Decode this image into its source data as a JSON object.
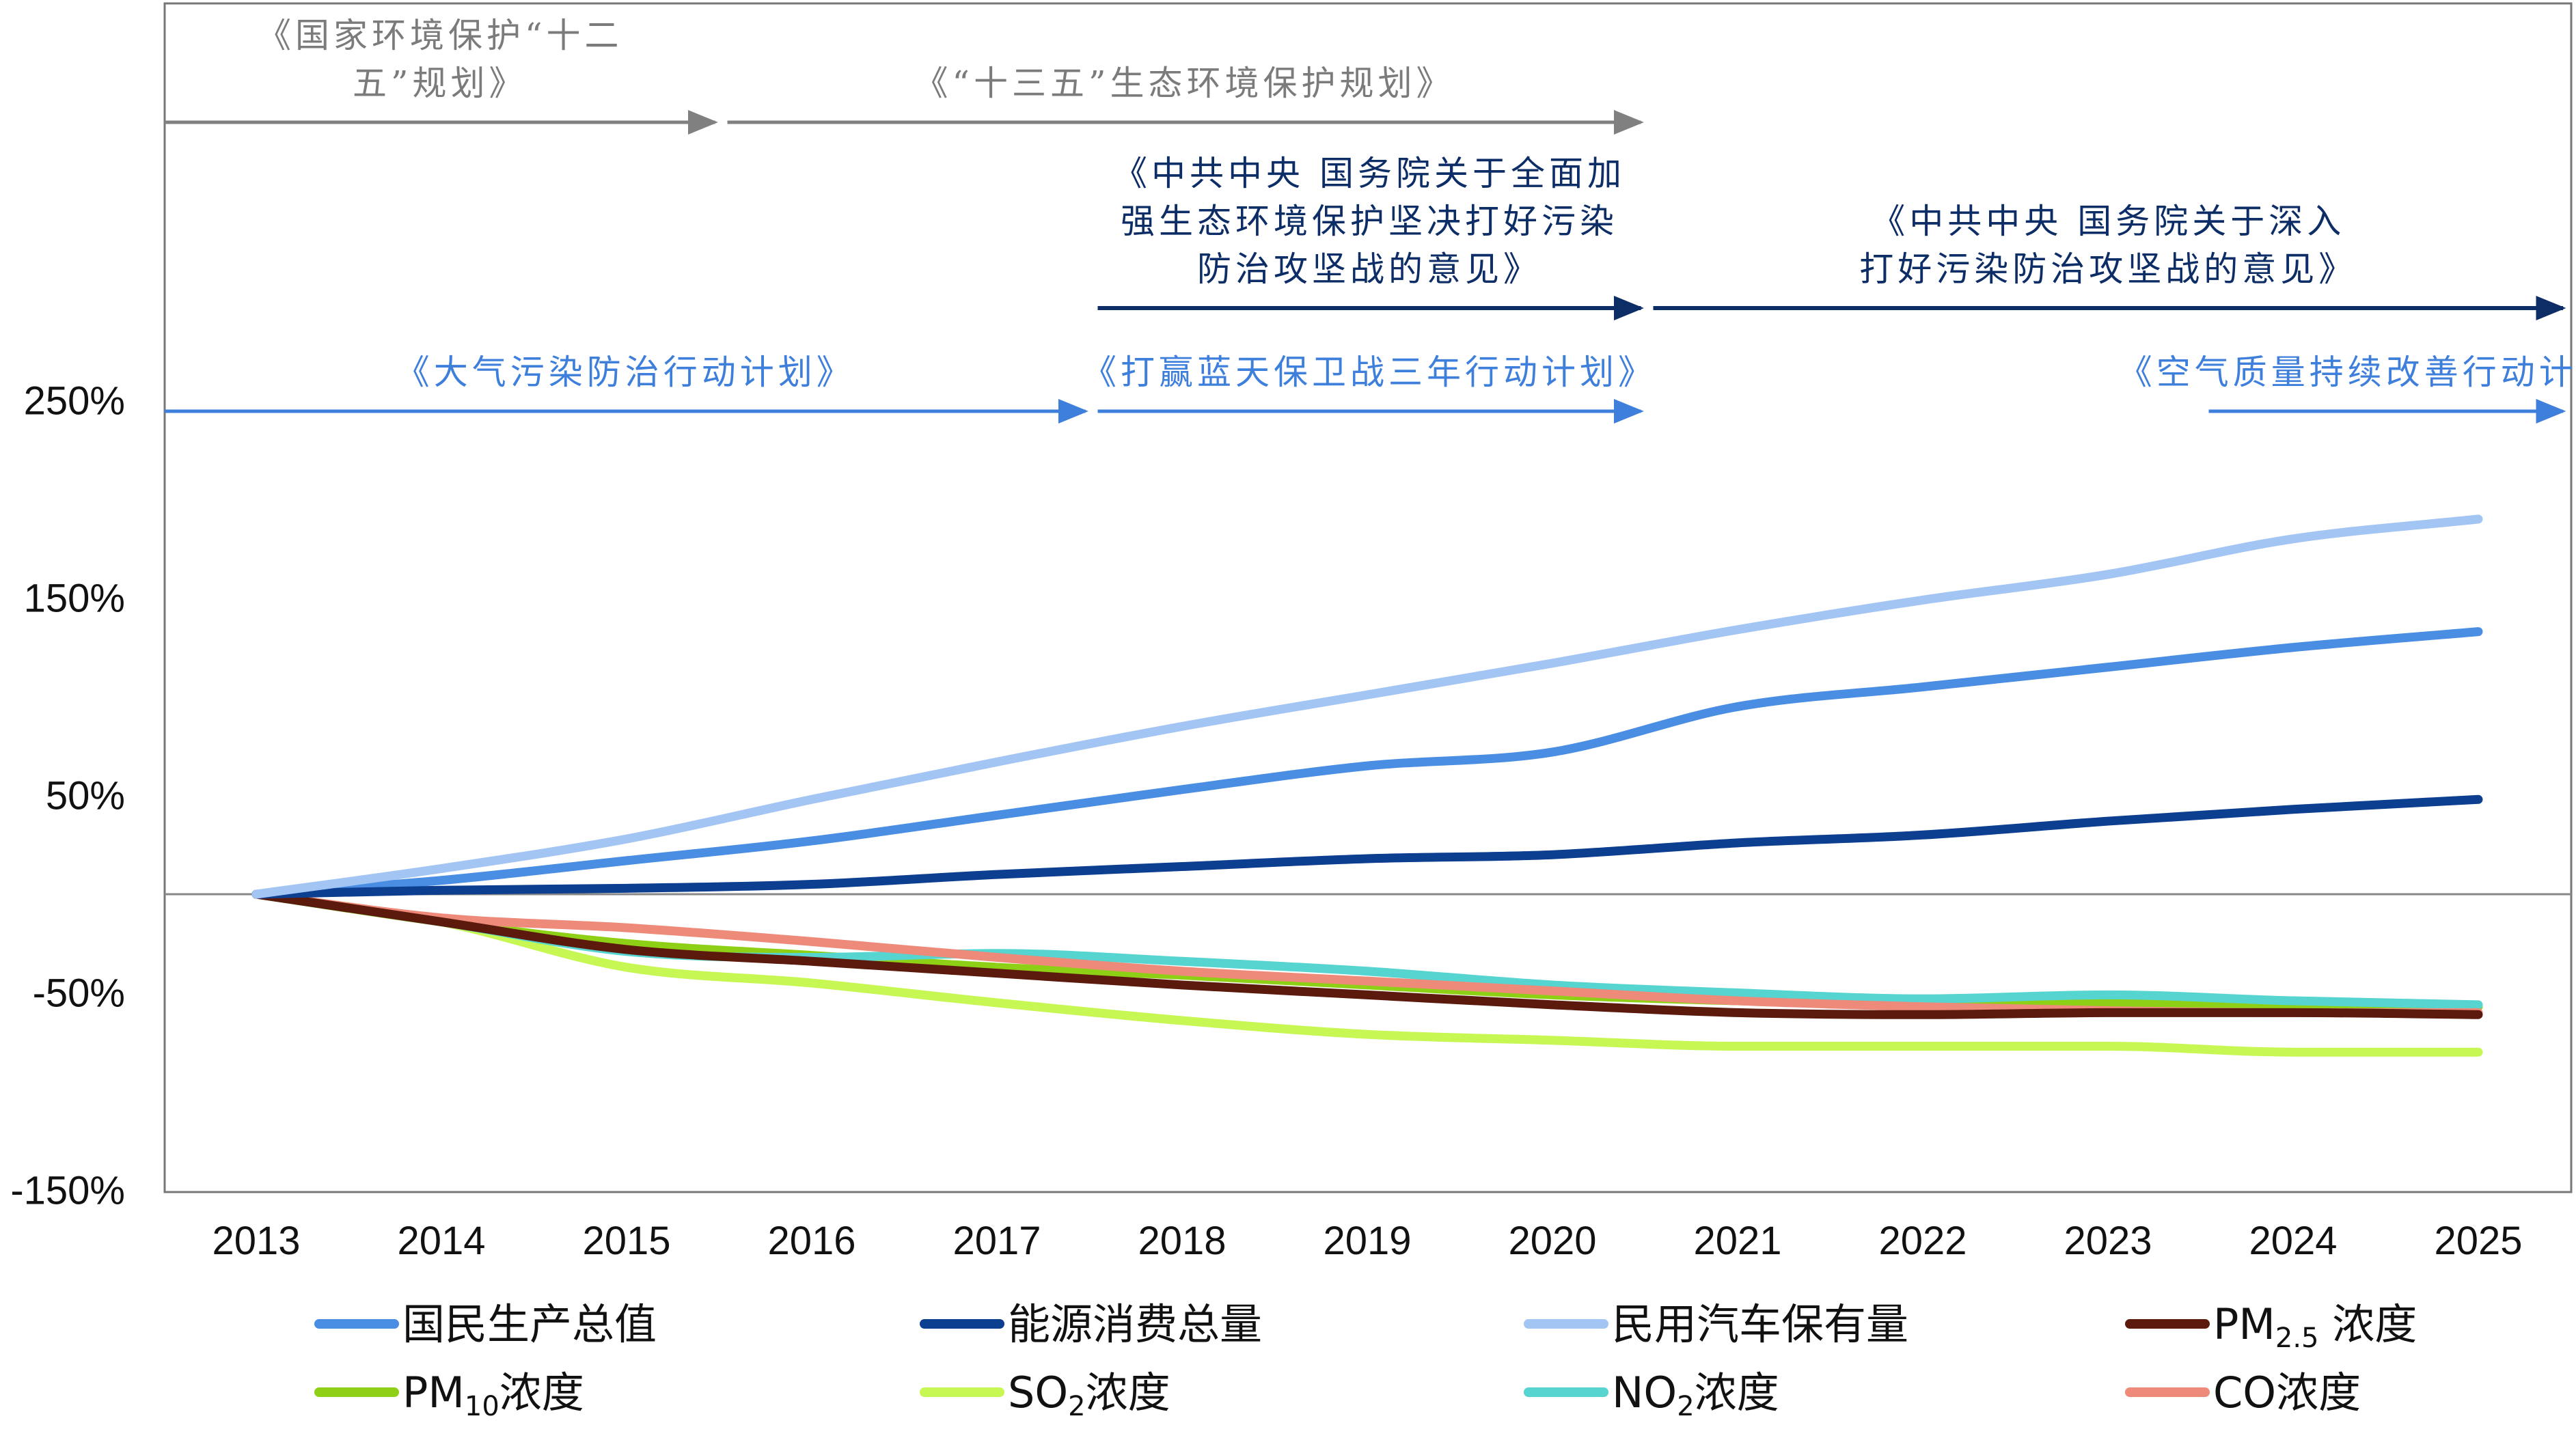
{
  "chart_data": {
    "type": "line",
    "title": "",
    "xlabel": "",
    "ylabel": "",
    "x": [
      "2013",
      "2014",
      "2015",
      "2016",
      "2017",
      "2018",
      "2019",
      "2020",
      "2021",
      "2022",
      "2023",
      "2024",
      "2025"
    ],
    "ylim": [
      -150,
      300
    ],
    "yticks": [
      {
        "value": 250,
        "label": "250%"
      },
      {
        "value": 150,
        "label": "150%"
      },
      {
        "value": 50,
        "label": "50%"
      },
      {
        "value": -50,
        "label": "-50%"
      },
      {
        "value": -150,
        "label": "-150%"
      }
    ],
    "grid": false,
    "zero_line": true,
    "legend_position": "bottom",
    "series": [
      {
        "name": "国民生产总值",
        "color": "#4a8ee4",
        "values": [
          0,
          7,
          17,
          27,
          40,
          53,
          65,
          72,
          95,
          105,
          115,
          125,
          133
        ]
      },
      {
        "name": "能源消费总量",
        "color": "#0d3f91",
        "values": [
          0,
          2,
          3,
          5,
          10,
          14,
          18,
          20,
          26,
          30,
          37,
          43,
          48
        ]
      },
      {
        "name": "民用汽车保有量",
        "color": "#a3c5f4",
        "values": [
          0,
          13,
          28,
          48,
          67,
          85,
          101,
          117,
          134,
          149,
          162,
          180,
          190
        ]
      },
      {
        "name": "PM2.5 浓度",
        "name_base": "PM",
        "name_sub": "2.5",
        "name_rest": " 浓度",
        "color": "#5c1a0d",
        "values": [
          0,
          -14,
          -28,
          -34,
          -40,
          -46,
          -51,
          -56,
          -60,
          -61,
          -60,
          -60,
          -61
        ]
      },
      {
        "name": "PM10浓度",
        "name_base": "PM",
        "name_sub": "10",
        "name_rest": "浓度",
        "color": "#8ed016",
        "values": [
          0,
          -14,
          -25,
          -31,
          -37,
          -41,
          -46,
          -51,
          -54,
          -56,
          -55,
          -56,
          -57
        ]
      },
      {
        "name": "SO2浓度",
        "name_base": "SO",
        "name_sub": "2",
        "name_rest": "浓度",
        "color": "#c6f752",
        "values": [
          0,
          -14,
          -37,
          -45,
          -55,
          -64,
          -71,
          -74,
          -77,
          -77,
          -77,
          -80,
          -80
        ]
      },
      {
        "name": "NO2浓度",
        "name_base": "NO",
        "name_sub": "2",
        "name_rest": "浓度",
        "color": "#55d4d0",
        "values": [
          0,
          -14,
          -29,
          -32,
          -30,
          -34,
          -39,
          -46,
          -50,
          -53,
          -51,
          -54,
          -56
        ]
      },
      {
        "name": "CO浓度",
        "color": "#ee8a7a",
        "values": [
          0,
          -12,
          -17,
          -24,
          -32,
          -39,
          -44,
          -49,
          -54,
          -57,
          -59,
          -60,
          -60
        ]
      }
    ]
  },
  "policies": [
    {
      "lines": [
        "《国家环境保护“十二",
        "五”规划》"
      ],
      "color": "#7b7b7b",
      "arrow_color": "#808080",
      "start": "2012.5",
      "end": "2015.5",
      "row": 1
    },
    {
      "lines": [
        "《“十三五”生态环境保护规划》"
      ],
      "color": "#7b7b7b",
      "arrow_color": "#808080",
      "start": "2015.5",
      "end": "2020.5",
      "row": 1
    },
    {
      "lines": [
        "《中共中央 国务院关于全面加",
        "强生态环境保护坚决打好污染",
        "防治攻坚战的意见》"
      ],
      "color": "#0d2d66",
      "arrow_color": "#0d2d66",
      "start": "2017.5",
      "end": "2020.5",
      "row": 2
    },
    {
      "lines": [
        "《中共中央 国务院关于深入",
        "打好污染防治攻坚战的意见》"
      ],
      "color": "#0d2d66",
      "arrow_color": "#0d2d66",
      "start": "2020.5",
      "end": "2025.5",
      "row": 2
    },
    {
      "lines": [
        "《大气污染防治行动计划》"
      ],
      "color": "#3e7fdc",
      "arrow_color": "#3e7fdc",
      "start": "2012.5",
      "end": "2017.5",
      "row": 3
    },
    {
      "lines": [
        "《打赢蓝天保卫战三年行动计划》"
      ],
      "color": "#3e7fdc",
      "arrow_color": "#3e7fdc",
      "start": "2017.5",
      "end": "2020.5",
      "row": 3
    },
    {
      "lines": [
        "《空气质量持续改善行动计划》"
      ],
      "color": "#3e7fdc",
      "arrow_color": "#3e7fdc",
      "start": "2023.5",
      "end": "2025.5",
      "row": 3
    }
  ]
}
